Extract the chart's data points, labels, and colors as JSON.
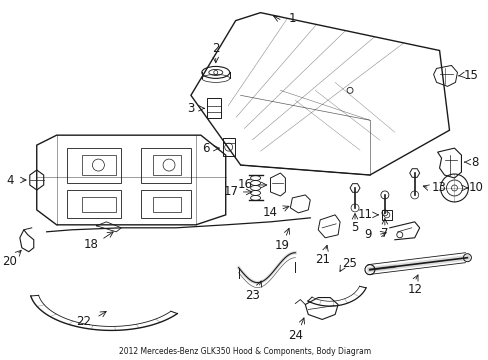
{
  "title": "2012 Mercedes-Benz GLK350 Hood & Components, Body Diagram",
  "bg_color": "#ffffff",
  "line_color": "#1a1a1a",
  "fig_width": 4.89,
  "fig_height": 3.6,
  "dpi": 100
}
